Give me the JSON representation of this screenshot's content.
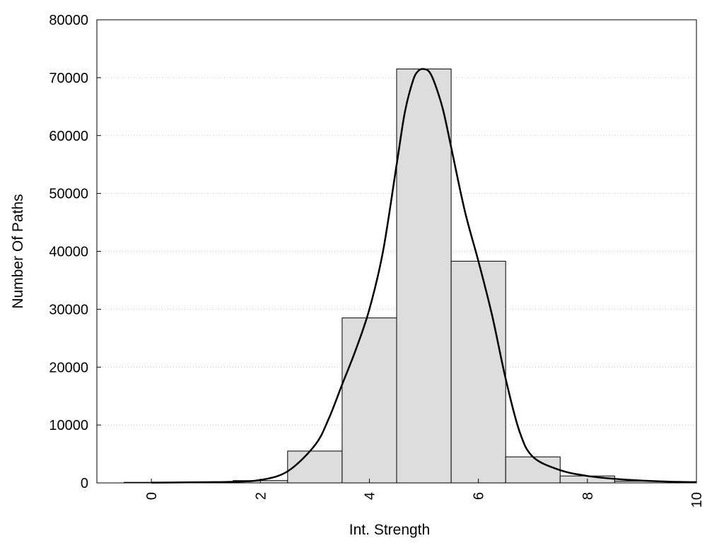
{
  "chart_data": {
    "type": "bar",
    "title": "",
    "xlabel": "Int. Strength",
    "ylabel": "Number Of Paths",
    "xlim": [
      -1,
      10
    ],
    "ylim": [
      0,
      80000
    ],
    "x_ticks": [
      0,
      2,
      4,
      6,
      8,
      10
    ],
    "x_tick_labels": [
      "0",
      "2",
      "4",
      "6",
      "8",
      "10"
    ],
    "y_ticks": [
      0,
      10000,
      20000,
      30000,
      40000,
      50000,
      60000,
      70000,
      80000
    ],
    "y_tick_labels": [
      "0",
      "10000",
      "20000",
      "30000",
      "40000",
      "50000",
      "60000",
      "70000",
      "80000"
    ],
    "grid": "horizontal-dotted",
    "bar_width": 1,
    "bars": [
      {
        "x": 0,
        "value": 100
      },
      {
        "x": 1,
        "value": 150
      },
      {
        "x": 2,
        "value": 400
      },
      {
        "x": 3,
        "value": 5500
      },
      {
        "x": 4,
        "value": 28500
      },
      {
        "x": 5,
        "value": 71500
      },
      {
        "x": 6,
        "value": 38300
      },
      {
        "x": 7,
        "value": 4500
      },
      {
        "x": 8,
        "value": 1200
      },
      {
        "x": 9,
        "value": 300
      }
    ],
    "curve": {
      "x": [
        0,
        0.5,
        1,
        1.5,
        2,
        2.5,
        3,
        3.25,
        3.5,
        3.75,
        4,
        4.25,
        4.5,
        4.65,
        4.8,
        4.9,
        5,
        5.1,
        5.2,
        5.35,
        5.5,
        5.75,
        6,
        6.25,
        6.5,
        6.75,
        7,
        7.5,
        8,
        8.5,
        9,
        9.5,
        10
      ],
      "y": [
        50,
        80,
        120,
        200,
        500,
        2000,
        6500,
        11000,
        17000,
        23000,
        30000,
        40000,
        55000,
        64000,
        69500,
        71200,
        71500,
        71000,
        69000,
        64500,
        58000,
        47000,
        38300,
        29000,
        18000,
        9000,
        4500,
        2200,
        1200,
        700,
        400,
        220,
        130
      ]
    }
  }
}
